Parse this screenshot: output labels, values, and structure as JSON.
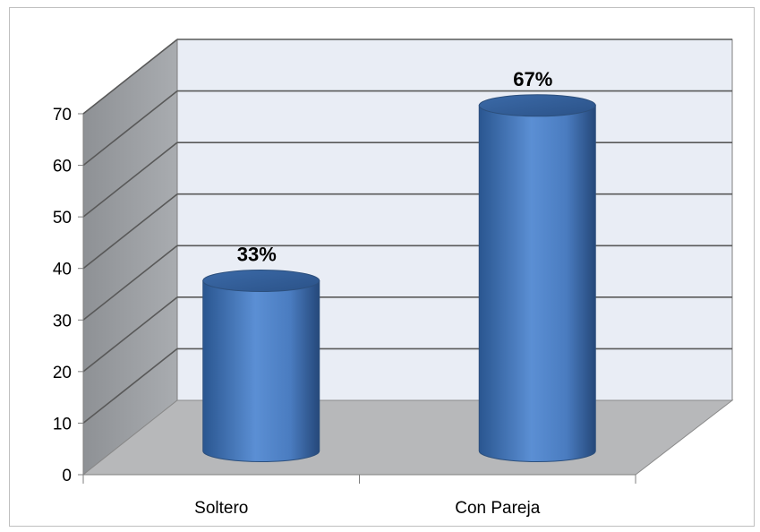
{
  "chart_data": {
    "type": "bar",
    "style": "3d-cylinder",
    "title": "",
    "xlabel": "",
    "ylabel": "",
    "categories": [
      "Soltero",
      "Con Pareja"
    ],
    "values": [
      33,
      67
    ],
    "data_labels": [
      "33%",
      "67%"
    ],
    "ylim": [
      0,
      70
    ],
    "yticks": [
      0,
      10,
      20,
      30,
      40,
      50,
      60,
      70
    ],
    "grid": true,
    "legend": "none",
    "colors": {
      "bar": "#4f81bd",
      "back_wall": "#e9edf5",
      "side_wall": "#9fa2a6",
      "floor": "#b7b8ba",
      "gridline": "#595959"
    }
  }
}
